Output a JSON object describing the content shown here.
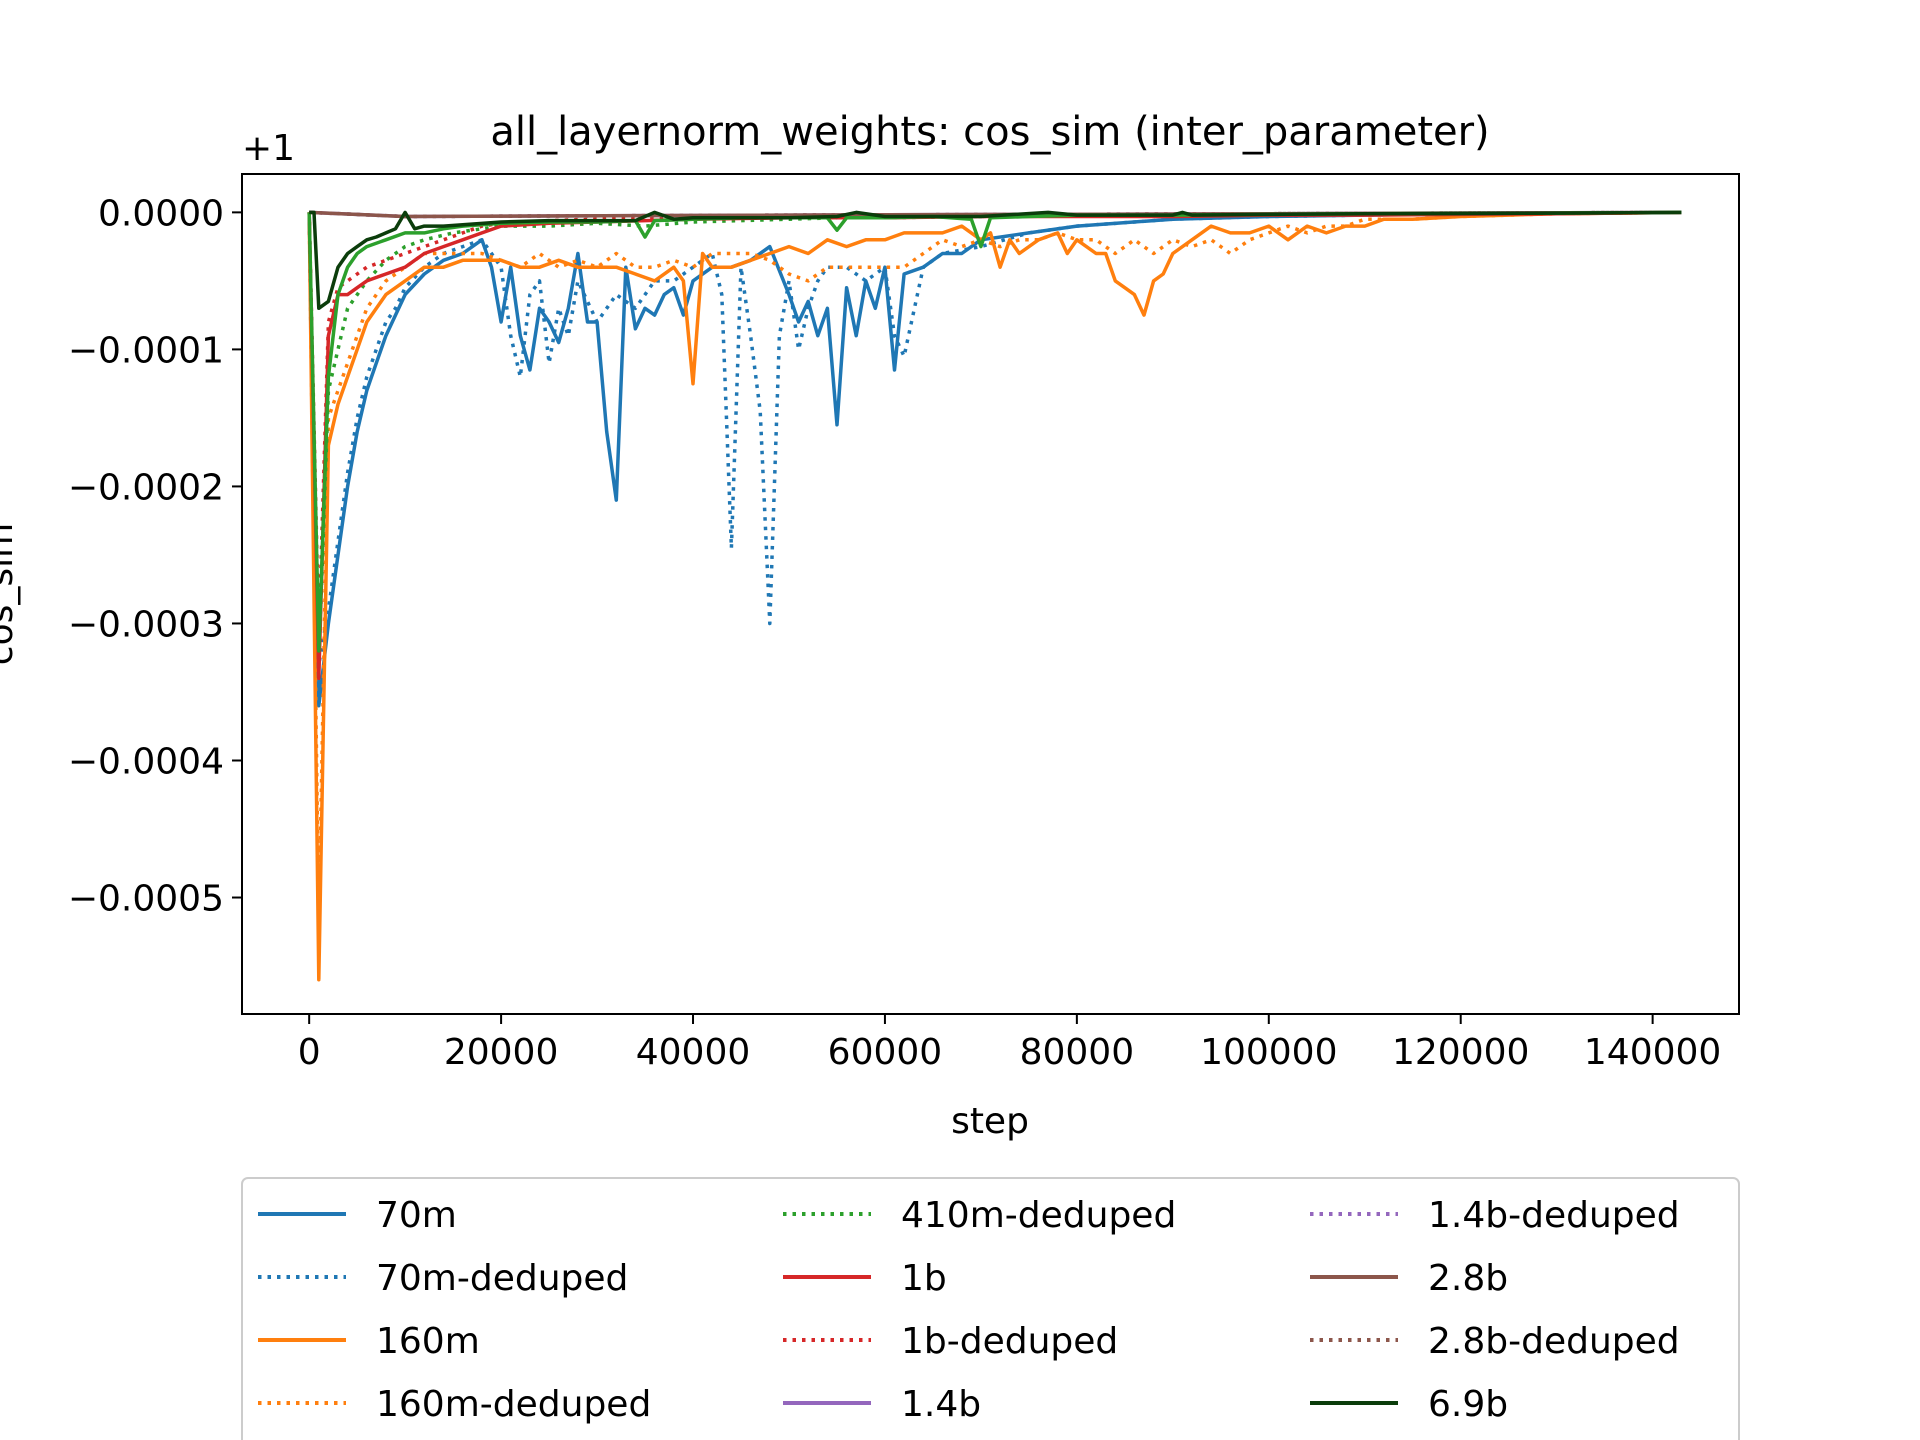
{
  "chart_data": {
    "type": "line",
    "title": "all_layernorm_weights: cos_sim (inter_parameter)",
    "xlabel": "step",
    "ylabel": "cos_sim",
    "offset_label": "+1",
    "xlim": [
      -7000,
      149000
    ],
    "ylim": [
      -0.000585,
      2.8e-05
    ],
    "xticks": [
      0,
      20000,
      40000,
      60000,
      80000,
      100000,
      120000,
      140000
    ],
    "xtick_labels": [
      "0",
      "20000",
      "40000",
      "60000",
      "80000",
      "100000",
      "120000",
      "140000"
    ],
    "yticks": [
      0.0,
      -0.0001,
      -0.0002,
      -0.0003,
      -0.0004,
      -0.0005
    ],
    "ytick_labels": [
      "0.0000",
      "−0.0001",
      "−0.0002",
      "−0.0003",
      "−0.0004",
      "−0.0005"
    ],
    "legend_position": "below",
    "legend_columns": 3,
    "series": [
      {
        "name": "70m",
        "color": "#1f77b4",
        "style": "solid",
        "x": [
          0,
          1000,
          2000,
          3000,
          4000,
          5000,
          6000,
          7000,
          8000,
          9000,
          10000,
          12000,
          14000,
          16000,
          18000,
          19000,
          20000,
          21000,
          22000,
          23000,
          24000,
          25000,
          26000,
          27000,
          28000,
          29000,
          30000,
          31000,
          32000,
          33000,
          34000,
          35000,
          36000,
          37000,
          38000,
          39000,
          40000,
          42000,
          44000,
          46000,
          48000,
          50000,
          51000,
          52000,
          53000,
          54000,
          55000,
          56000,
          57000,
          58000,
          59000,
          60000,
          61000,
          62000,
          64000,
          66000,
          68000,
          70000,
          75000,
          80000,
          90000,
          100000,
          110000,
          120000,
          130000,
          143000
        ],
        "y": [
          0,
          -0.00036,
          -0.0003,
          -0.00025,
          -0.0002,
          -0.00016,
          -0.00013,
          -0.00011,
          -9e-05,
          -7.5e-05,
          -6e-05,
          -4.5e-05,
          -3.5e-05,
          -3e-05,
          -2e-05,
          -4e-05,
          -8e-05,
          -4e-05,
          -9e-05,
          -0.000115,
          -7e-05,
          -8e-05,
          -9.5e-05,
          -7e-05,
          -3e-05,
          -8e-05,
          -8e-05,
          -0.00016,
          -0.00021,
          -4e-05,
          -8.5e-05,
          -7e-05,
          -7.5e-05,
          -6e-05,
          -5.5e-05,
          -7.5e-05,
          -5e-05,
          -4e-05,
          -4e-05,
          -3.5e-05,
          -2.5e-05,
          -6e-05,
          -8e-05,
          -6.5e-05,
          -9e-05,
          -7e-05,
          -0.000155,
          -5.5e-05,
          -9e-05,
          -5e-05,
          -7e-05,
          -4e-05,
          -0.000115,
          -4.5e-05,
          -4e-05,
          -3e-05,
          -3e-05,
          -2e-05,
          -1.5e-05,
          -1e-05,
          -5e-06,
          -3e-06,
          -2e-06,
          -1e-06,
          -5e-07,
          0
        ]
      },
      {
        "name": "70m-deduped",
        "color": "#1f77b4",
        "style": "dotted",
        "x": [
          0,
          1000,
          2000,
          3000,
          4000,
          5000,
          6000,
          7000,
          8000,
          9000,
          10000,
          12000,
          14000,
          16000,
          18000,
          20000,
          21000,
          22000,
          23000,
          24000,
          25000,
          26000,
          27000,
          28000,
          30000,
          32000,
          34000,
          36000,
          38000,
          40000,
          42000,
          43000,
          44000,
          45000,
          46000,
          47000,
          48000,
          49000,
          50000,
          51000,
          52000,
          53000,
          54000,
          56000,
          58000,
          60000,
          61000,
          62000,
          64000,
          66000,
          70000,
          75000,
          80000,
          90000,
          100000,
          110000,
          120000,
          130000,
          143000
        ],
        "y": [
          0,
          -0.00033,
          -0.00029,
          -0.00024,
          -0.00019,
          -0.00015,
          -0.00012,
          -0.0001,
          -8e-05,
          -7e-05,
          -5.5e-05,
          -4e-05,
          -3e-05,
          -2.5e-05,
          -2e-05,
          -4e-05,
          -9e-05,
          -0.00012,
          -6e-05,
          -5e-05,
          -0.00011,
          -7e-05,
          -9e-05,
          -5e-05,
          -8e-05,
          -6e-05,
          -7e-05,
          -5e-05,
          -5e-05,
          -4e-05,
          -3e-05,
          -6e-05,
          -0.000245,
          -4e-05,
          -9e-05,
          -0.000145,
          -0.0003,
          -9e-05,
          -5e-05,
          -0.0001,
          -7e-05,
          -5e-05,
          -4e-05,
          -4e-05,
          -5e-05,
          -4e-05,
          -9e-05,
          -0.000105,
          -4e-05,
          -3e-05,
          -2.5e-05,
          -1.5e-05,
          -1e-05,
          -5e-06,
          -3e-06,
          -2e-06,
          -1e-06,
          -5e-07,
          0
        ]
      },
      {
        "name": "160m",
        "color": "#ff7f0e",
        "style": "solid",
        "x": [
          0,
          1000,
          2000,
          3000,
          4000,
          5000,
          6000,
          8000,
          10000,
          12000,
          14000,
          16000,
          18000,
          20000,
          22000,
          24000,
          26000,
          28000,
          30000,
          32000,
          34000,
          36000,
          38000,
          39000,
          40000,
          41000,
          42000,
          44000,
          46000,
          48000,
          50000,
          52000,
          54000,
          56000,
          58000,
          60000,
          62000,
          64000,
          66000,
          68000,
          70000,
          71000,
          72000,
          73000,
          74000,
          76000,
          78000,
          79000,
          80000,
          82000,
          83000,
          84000,
          85000,
          86000,
          87000,
          88000,
          89000,
          90000,
          92000,
          94000,
          96000,
          98000,
          100000,
          102000,
          104000,
          106000,
          108000,
          110000,
          112000,
          115000,
          120000,
          125000,
          130000,
          143000
        ],
        "y": [
          0,
          -0.00056,
          -0.00017,
          -0.00014,
          -0.00012,
          -0.0001,
          -8e-05,
          -6e-05,
          -5e-05,
          -4e-05,
          -4e-05,
          -3.5e-05,
          -3.5e-05,
          -3.5e-05,
          -4e-05,
          -4e-05,
          -3.5e-05,
          -4e-05,
          -4e-05,
          -4e-05,
          -4.5e-05,
          -5e-05,
          -4e-05,
          -5e-05,
          -0.000125,
          -3e-05,
          -4e-05,
          -4e-05,
          -3.5e-05,
          -3e-05,
          -2.5e-05,
          -3e-05,
          -2e-05,
          -2.5e-05,
          -2e-05,
          -2e-05,
          -1.5e-05,
          -1.5e-05,
          -1.5e-05,
          -1e-05,
          -2e-05,
          -1.5e-05,
          -4e-05,
          -2e-05,
          -3e-05,
          -2e-05,
          -1.5e-05,
          -3e-05,
          -2e-05,
          -3e-05,
          -3e-05,
          -5e-05,
          -5.5e-05,
          -6e-05,
          -7.5e-05,
          -5e-05,
          -4.5e-05,
          -3e-05,
          -2e-05,
          -1e-05,
          -1.5e-05,
          -1.5e-05,
          -1e-05,
          -2e-05,
          -1e-05,
          -1.5e-05,
          -1e-05,
          -1e-05,
          -5e-06,
          -5e-06,
          -3e-06,
          -2e-06,
          -1e-06,
          0
        ]
      },
      {
        "name": "160m-deduped",
        "color": "#ff7f0e",
        "style": "dotted",
        "x": [
          0,
          1000,
          2000,
          3000,
          4000,
          5000,
          6000,
          8000,
          10000,
          12000,
          14000,
          16000,
          18000,
          20000,
          22000,
          24000,
          26000,
          28000,
          30000,
          32000,
          34000,
          36000,
          38000,
          40000,
          42000,
          44000,
          46000,
          48000,
          50000,
          52000,
          54000,
          56000,
          58000,
          60000,
          62000,
          64000,
          66000,
          68000,
          70000,
          72000,
          74000,
          76000,
          78000,
          80000,
          82000,
          84000,
          86000,
          88000,
          90000,
          92000,
          94000,
          96000,
          98000,
          100000,
          102000,
          104000,
          106000,
          108000,
          110000,
          115000,
          120000,
          125000,
          130000,
          143000
        ],
        "y": [
          0,
          -0.00052,
          -0.00015,
          -0.00013,
          -0.00011,
          -9e-05,
          -7e-05,
          -5e-05,
          -4e-05,
          -3e-05,
          -3e-05,
          -3e-05,
          -3e-05,
          -3.5e-05,
          -4e-05,
          -3e-05,
          -4e-05,
          -3.5e-05,
          -4e-05,
          -3e-05,
          -4e-05,
          -4e-05,
          -3.5e-05,
          -4e-05,
          -3e-05,
          -3e-05,
          -3e-05,
          -3.5e-05,
          -4.5e-05,
          -5e-05,
          -4e-05,
          -4e-05,
          -4e-05,
          -4e-05,
          -4e-05,
          -3e-05,
          -2e-05,
          -2.5e-05,
          -2e-05,
          -2.5e-05,
          -2e-05,
          -2e-05,
          -1.5e-05,
          -2e-05,
          -2e-05,
          -3e-05,
          -2e-05,
          -3e-05,
          -2e-05,
          -2.5e-05,
          -2e-05,
          -3e-05,
          -2e-05,
          -1.5e-05,
          -1e-05,
          -1.5e-05,
          -1e-05,
          -1e-05,
          -5e-06,
          -5e-06,
          -3e-06,
          -2e-06,
          -1e-06,
          0
        ]
      },
      {
        "name": "410m-deduped",
        "color": "#2ca02c",
        "style": "dotted",
        "x": [
          0,
          1000,
          2000,
          3000,
          4000,
          6000,
          8000,
          10000,
          12000,
          15000,
          20000,
          25000,
          30000,
          35000,
          40000,
          45000,
          50000,
          55000,
          60000,
          70000,
          80000,
          90000,
          100000,
          110000,
          120000,
          143000
        ],
        "y": [
          0,
          -0.00033,
          -0.00013,
          -0.0001,
          -7e-05,
          -5e-05,
          -3.5e-05,
          -2.5e-05,
          -2e-05,
          -1.5e-05,
          -1e-05,
          -1e-05,
          -8e-06,
          -1e-05,
          -7e-06,
          -6e-06,
          -5e-06,
          -4e-06,
          -4e-06,
          -3e-06,
          -2e-06,
          -1.5e-06,
          -1e-06,
          -8e-07,
          -5e-07,
          0
        ]
      },
      {
        "name": "1b",
        "color": "#d62728",
        "style": "solid",
        "x": [
          0,
          1000,
          2000,
          3000,
          4000,
          5000,
          6000,
          8000,
          10000,
          12000,
          14000,
          16000,
          18000,
          20000,
          25000,
          30000,
          35000,
          40000,
          50000,
          60000,
          70000,
          80000,
          90000,
          100000,
          110000,
          120000,
          130000,
          143000
        ],
        "y": [
          0,
          -0.00034,
          -9e-05,
          -6e-05,
          -6e-05,
          -5.5e-05,
          -5e-05,
          -4.5e-05,
          -4e-05,
          -3e-05,
          -2.5e-05,
          -2e-05,
          -1.5e-05,
          -1e-05,
          -8e-06,
          -7e-06,
          -6e-06,
          -5e-06,
          -4e-06,
          -4e-06,
          -3e-06,
          -3e-06,
          -3e-06,
          -2e-06,
          -2e-06,
          -1.5e-06,
          -1e-06,
          0
        ]
      },
      {
        "name": "1b-deduped",
        "color": "#d62728",
        "style": "dotted",
        "x": [
          0,
          1000,
          2000,
          3000,
          4000,
          5000,
          6000,
          8000,
          10000,
          12000,
          14000,
          16000,
          18000,
          20000,
          25000,
          30000,
          40000,
          50000,
          60000,
          70000,
          80000,
          90000,
          100000,
          110000,
          120000,
          130000,
          143000
        ],
        "y": [
          0,
          -0.00031,
          -8e-05,
          -5.5e-05,
          -5e-05,
          -4.5e-05,
          -4e-05,
          -3.5e-05,
          -3e-05,
          -2.5e-05,
          -2e-05,
          -1.5e-05,
          -1e-05,
          -8e-06,
          -6e-06,
          -5e-06,
          -4e-06,
          -3e-06,
          -3e-06,
          -3e-06,
          -2e-06,
          -2e-06,
          -2e-06,
          -1.5e-06,
          -1e-06,
          -8e-07,
          0
        ]
      },
      {
        "name": "1.4b",
        "color": "#9467bd",
        "style": "solid",
        "x": [
          0,
          10000,
          50000,
          100000,
          143000
        ],
        "y": [
          0,
          -3e-06,
          -2e-06,
          -1e-06,
          0
        ]
      },
      {
        "name": "1.4b-deduped",
        "color": "#9467bd",
        "style": "dotted",
        "x": [
          0,
          10000,
          50000,
          100000,
          143000
        ],
        "y": [
          0,
          -3e-06,
          -2e-06,
          -1e-06,
          0
        ]
      },
      {
        "name": "2.8b",
        "color": "#8c564b",
        "style": "solid",
        "x": [
          0,
          10000,
          50000,
          100000,
          143000
        ],
        "y": [
          0,
          -3e-06,
          -2e-06,
          -1e-06,
          0
        ]
      },
      {
        "name": "2.8b-deduped",
        "color": "#8c564b",
        "style": "dotted",
        "x": [
          0,
          10000,
          50000,
          100000,
          143000
        ],
        "y": [
          0,
          -3e-06,
          -2e-06,
          -1e-06,
          0
        ]
      },
      {
        "name": "410m",
        "color": "#2ca02c",
        "style": "solid",
        "in_legend": false,
        "x": [
          0,
          1000,
          2000,
          3000,
          4000,
          5000,
          6000,
          8000,
          10000,
          12000,
          14000,
          16000,
          20000,
          25000,
          30000,
          34000,
          35000,
          36000,
          40000,
          45000,
          50000,
          54000,
          55000,
          56000,
          60000,
          65000,
          69000,
          70000,
          71000,
          75000,
          80000,
          90000,
          100000,
          110000,
          120000,
          130000,
          143000
        ],
        "y": [
          0,
          -0.00032,
          -0.00012,
          -6e-05,
          -4e-05,
          -3e-05,
          -2.5e-05,
          -2e-05,
          -1.5e-05,
          -1.5e-05,
          -1.2e-05,
          -1e-05,
          -8e-06,
          -7e-06,
          -7e-06,
          -6e-06,
          -1.8e-05,
          -6e-06,
          -5e-06,
          -4e-06,
          -4e-06,
          -4e-06,
          -1.3e-05,
          -4e-06,
          -4e-06,
          -3e-06,
          -5e-06,
          -2.5e-05,
          -4e-06,
          -3e-06,
          -2e-06,
          -2e-06,
          -1.5e-06,
          -1e-06,
          -8e-07,
          -5e-07,
          0
        ]
      },
      {
        "name": "6.9b",
        "color": "#0b3d0b",
        "style": "solid",
        "x": [
          0,
          500,
          1000,
          2000,
          3000,
          4000,
          5000,
          6000,
          7000,
          8000,
          9000,
          10000,
          11000,
          12000,
          14000,
          16000,
          20000,
          25000,
          30000,
          34000,
          36000,
          38000,
          40000,
          45000,
          50000,
          55000,
          57000,
          60000,
          65000,
          70000,
          77000,
          80000,
          90000,
          91000,
          92000,
          100000,
          110000,
          120000,
          130000,
          143000
        ],
        "y": [
          0,
          0,
          -7e-05,
          -6.5e-05,
          -4e-05,
          -3e-05,
          -2.5e-05,
          -2e-05,
          -1.8e-05,
          -1.5e-05,
          -1.2e-05,
          0,
          -1.2e-05,
          -1e-05,
          -1e-05,
          -9e-06,
          -7e-06,
          -6e-06,
          -6e-06,
          -6e-06,
          0,
          -5e-06,
          -4e-06,
          -4e-06,
          -4e-06,
          -3e-06,
          0,
          -3e-06,
          -3e-06,
          -3e-06,
          0,
          -2e-06,
          -2e-06,
          0,
          -2e-06,
          -1.5e-06,
          -1e-06,
          -8e-07,
          -5e-07,
          0
        ]
      }
    ]
  }
}
